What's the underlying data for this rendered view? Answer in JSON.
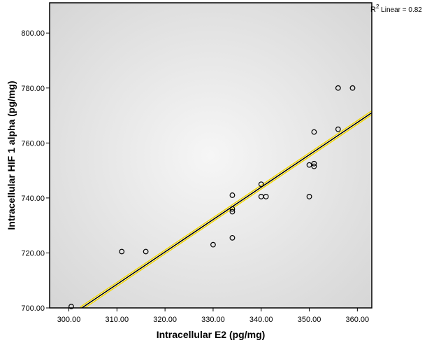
{
  "chart_data": {
    "type": "scatter",
    "xlabel": "Intracellular E2  (pg/mg)",
    "ylabel": "Intracellular HIF 1 alpha  (pg/mg)",
    "xlim": [
      296,
      363
    ],
    "ylim": [
      700,
      811
    ],
    "x_ticks": [
      300,
      310,
      320,
      330,
      340,
      350,
      360
    ],
    "y_ticks": [
      700,
      720,
      740,
      760,
      780,
      800
    ],
    "x_tick_labels": [
      "300.00",
      "310.00",
      "320.00",
      "330.00",
      "340.00",
      "350.00",
      "360.00"
    ],
    "y_tick_labels": [
      "700.00",
      "720.00",
      "740.00",
      "760.00",
      "780.00",
      "800.00"
    ],
    "grid": false,
    "points": [
      {
        "x": 300.5,
        "y": 700.5
      },
      {
        "x": 311.0,
        "y": 720.5
      },
      {
        "x": 316.0,
        "y": 720.5
      },
      {
        "x": 330.0,
        "y": 723.0
      },
      {
        "x": 334.0,
        "y": 725.5
      },
      {
        "x": 334.0,
        "y": 735.0
      },
      {
        "x": 334.0,
        "y": 736.0
      },
      {
        "x": 334.0,
        "y": 741.0
      },
      {
        "x": 340.0,
        "y": 745.0
      },
      {
        "x": 340.0,
        "y": 740.5
      },
      {
        "x": 341.0,
        "y": 740.5
      },
      {
        "x": 350.0,
        "y": 740.5
      },
      {
        "x": 350.0,
        "y": 752.0
      },
      {
        "x": 351.0,
        "y": 752.5
      },
      {
        "x": 351.0,
        "y": 751.5
      },
      {
        "x": 351.0,
        "y": 764.0
      },
      {
        "x": 356.0,
        "y": 765.0
      },
      {
        "x": 356.0,
        "y": 780.0
      },
      {
        "x": 359.0,
        "y": 780.0
      }
    ],
    "fit_line": {
      "x": [
        302.7,
        363.0
      ],
      "y": [
        700.0,
        771.0
      ],
      "label": "Linear",
      "r2_label": "R",
      "r2_sup": "2",
      "r2_text": " Linear = 0.82"
    },
    "colors": {
      "fit_line": "#000000",
      "fit_halo": "#f2d600",
      "plot_background": "#e8e8e8",
      "marker": "#000000"
    }
  }
}
